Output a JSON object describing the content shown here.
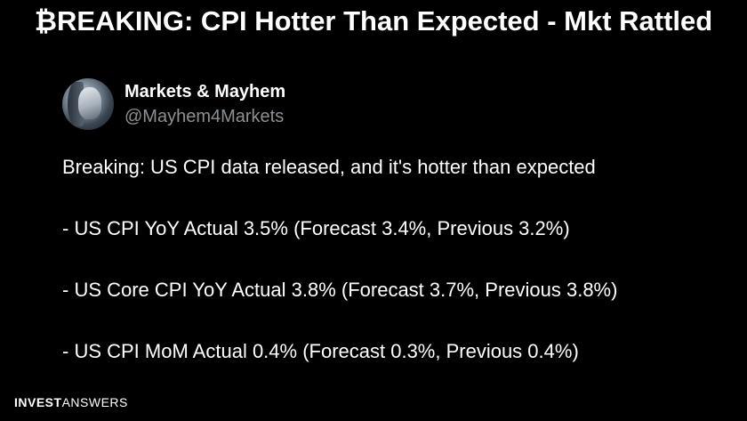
{
  "headline": "₿REAKING: CPI Hotter Than Expected - Mkt Rattled",
  "tweet": {
    "author": {
      "display_name": "Markets & Mayhem",
      "handle": "@Mayhem4Markets",
      "avatar_icon": "robot-face-avatar"
    },
    "intro": "Breaking: US CPI data released, and it's hotter than expected",
    "lines": [
      "- US CPI YoY Actual 3.5% (Forecast 3.4%, Previous 3.2%)",
      "- US Core CPI YoY Actual 3.8% (Forecast 3.7%, Previous 3.8%)",
      "- US CPI MoM Actual 0.4% (Forecast 0.3%, Previous 0.4%)"
    ]
  },
  "brand": {
    "part1": "INVEST",
    "part2": "ANSWERS"
  }
}
